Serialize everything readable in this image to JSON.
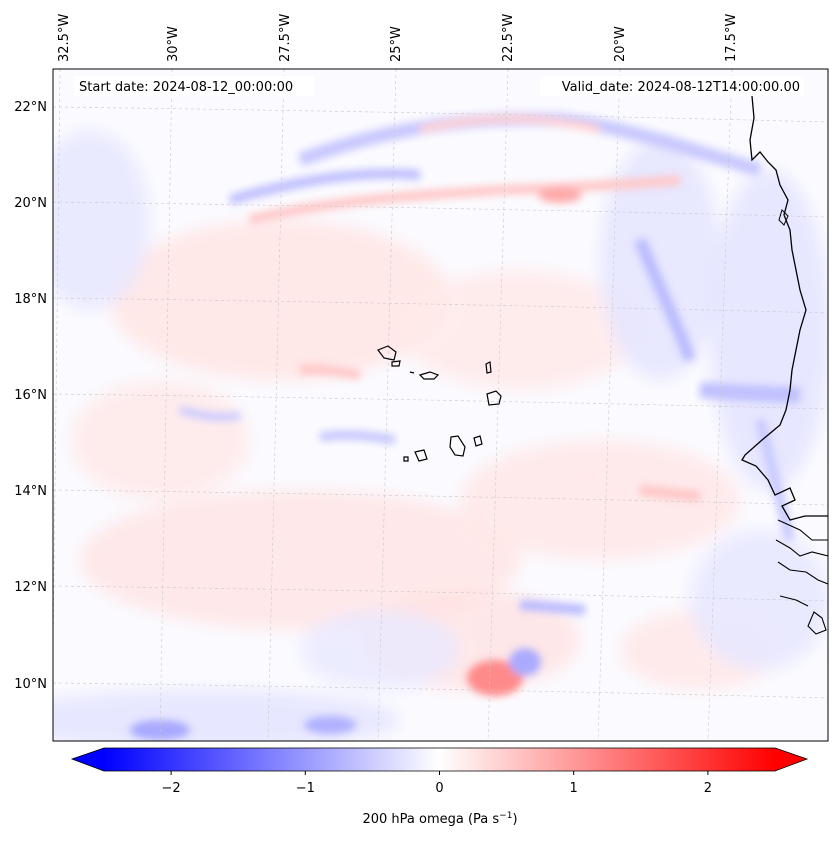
{
  "map": {
    "start_label": "Start date: 2024-08-12_00:00:00",
    "valid_label": "Valid_date: 2024-08-12T14:00:00.00",
    "lon_labels": [
      "32.5°W",
      "30°W",
      "27.5°W",
      "25°W",
      "22.5°W",
      "20°W",
      "17.5°W"
    ],
    "lat_labels": [
      "22°N",
      "20°N",
      "18°N",
      "16°N",
      "14°N",
      "12°N",
      "10°N"
    ],
    "colorbar": {
      "label_prefix": "200 hPa omega (Pa s",
      "label_exp": "−1",
      "label_suffix": ")",
      "tick_labels": [
        "−2",
        "−1",
        "0",
        "1",
        "2"
      ],
      "range": [
        -2.5,
        2.5
      ],
      "negative_color": "#0000ff",
      "positive_color": "#ff0000"
    }
  }
}
